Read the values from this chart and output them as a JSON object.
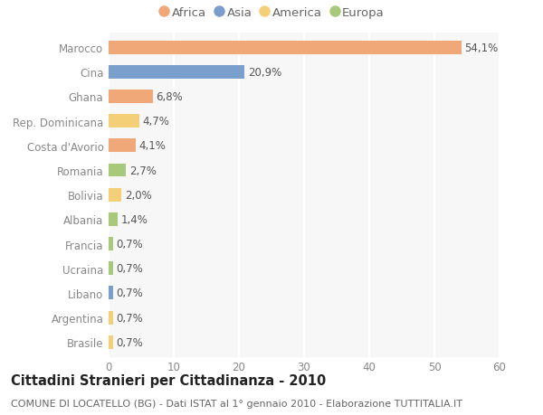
{
  "countries": [
    "Marocco",
    "Cina",
    "Ghana",
    "Rep. Dominicana",
    "Costa d'Avorio",
    "Romania",
    "Bolivia",
    "Albania",
    "Francia",
    "Ucraina",
    "Libano",
    "Argentina",
    "Brasile"
  ],
  "values": [
    54.1,
    20.9,
    6.8,
    4.7,
    4.1,
    2.7,
    2.0,
    1.4,
    0.7,
    0.7,
    0.7,
    0.7,
    0.7
  ],
  "labels": [
    "54,1%",
    "20,9%",
    "6,8%",
    "4,7%",
    "4,1%",
    "2,7%",
    "2,0%",
    "1,4%",
    "0,7%",
    "0,7%",
    "0,7%",
    "0,7%",
    "0,7%"
  ],
  "continents": [
    "Africa",
    "Asia",
    "Africa",
    "America",
    "Africa",
    "Europa",
    "America",
    "Europa",
    "Europa",
    "Europa",
    "Asia",
    "America",
    "America"
  ],
  "colors": {
    "Africa": "#F0A878",
    "Asia": "#7B9FCC",
    "America": "#F5CE78",
    "Europa": "#A8C87A"
  },
  "legend_order": [
    "Africa",
    "Asia",
    "America",
    "Europa"
  ],
  "xlim": [
    0,
    60
  ],
  "xticks": [
    0,
    10,
    20,
    30,
    40,
    50,
    60
  ],
  "title": "Cittadini Stranieri per Cittadinanza - 2010",
  "subtitle": "COMUNE DI LOCATELLO (BG) - Dati ISTAT al 1° gennaio 2010 - Elaborazione TUTTITALIA.IT",
  "background_color": "#ffffff",
  "plot_bg_color": "#f7f7f7",
  "bar_height": 0.55,
  "title_fontsize": 10.5,
  "subtitle_fontsize": 8,
  "label_fontsize": 8.5,
  "tick_fontsize": 8.5,
  "legend_fontsize": 9.5
}
